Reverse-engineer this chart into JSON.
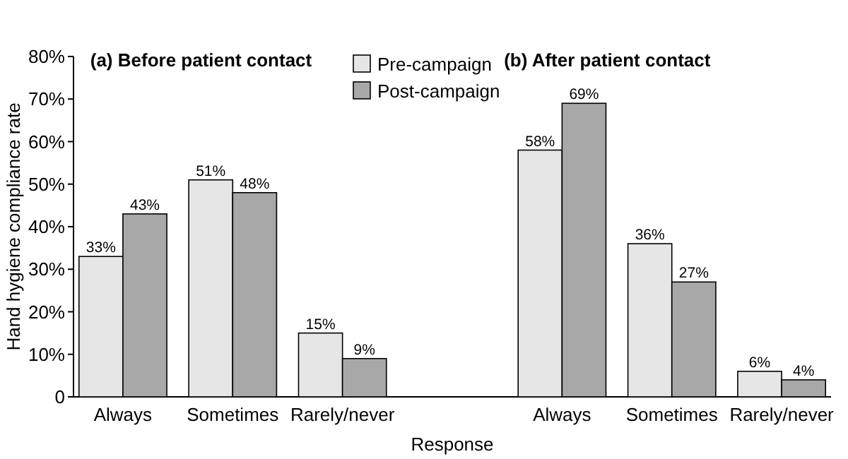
{
  "chart_data": {
    "type": "bar",
    "xlabel": "Response",
    "ylabel": "Hand hygiene compliance rate",
    "categories": [
      "Always",
      "Sometimes",
      "Rarely/never",
      null,
      "Always",
      "Sometimes",
      "Rarely/never"
    ],
    "series": [
      {
        "name": "Pre-campaign",
        "color": "#e6e6e6",
        "values": [
          33,
          51,
          15,
          null,
          58,
          36,
          6
        ]
      },
      {
        "name": "Post-campaign",
        "color": "#a8a8a8",
        "values": [
          43,
          48,
          9,
          null,
          69,
          27,
          4
        ]
      }
    ],
    "value_labels": [
      [
        "33%",
        "51%",
        "15%",
        null,
        "58%",
        "36%",
        "6%"
      ],
      [
        "43%",
        "48%",
        "9%",
        null,
        "69%",
        "27%",
        "4%"
      ]
    ],
    "ylim": [
      0,
      80
    ],
    "yticks": [
      {
        "value": 0,
        "label": "0"
      },
      {
        "value": 10,
        "label": "10%"
      },
      {
        "value": 20,
        "label": "20%"
      },
      {
        "value": 30,
        "label": "30%"
      },
      {
        "value": 40,
        "label": "40%"
      },
      {
        "value": 50,
        "label": "50%"
      },
      {
        "value": 60,
        "label": "60%"
      },
      {
        "value": 70,
        "label": "70%"
      },
      {
        "value": 80,
        "label": "80%"
      }
    ],
    "annotations": [
      "(a) Before patient contact",
      "(b) After patient contact"
    ],
    "legend": "top",
    "grid": false
  }
}
